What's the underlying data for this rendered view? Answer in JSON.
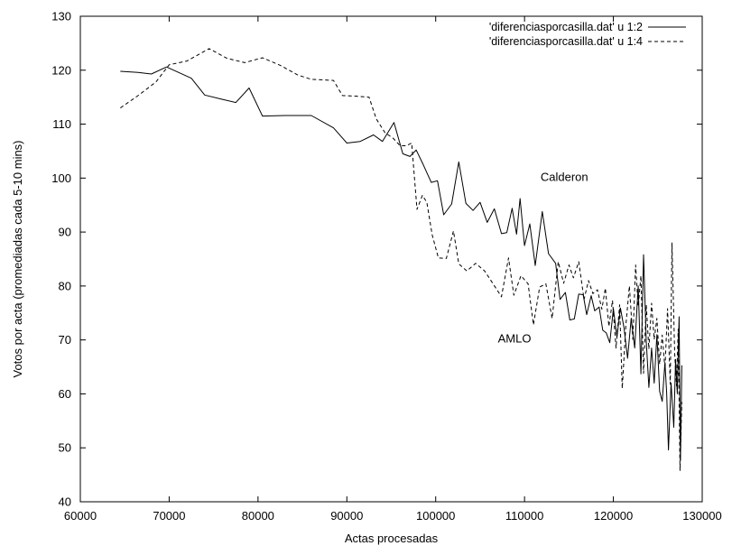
{
  "chart_data": {
    "type": "line",
    "xlabel": "Actas procesadas",
    "ylabel": "Votos por acta (promediadas cada 5-10 mins)",
    "xlim": [
      60000,
      130000
    ],
    "ylim": [
      40,
      130
    ],
    "xticks": [
      60000,
      70000,
      80000,
      90000,
      100000,
      110000,
      120000,
      130000
    ],
    "xtick_labels": [
      "60000",
      "70000",
      "80000",
      "90000",
      "100000",
      "110000",
      "120000",
      "130000"
    ],
    "yticks": [
      40,
      50,
      60,
      70,
      80,
      90,
      100,
      110,
      120,
      130
    ],
    "ytick_labels": [
      "40",
      "50",
      "60",
      "70",
      "80",
      "90",
      "100",
      "110",
      "120",
      "130"
    ],
    "grid": false,
    "legend_position": "top-right",
    "annotations": [
      {
        "text": "Calderon",
        "x": 111800,
        "y": 99.5
      },
      {
        "text": "AMLO",
        "x": 107000,
        "y": 69.5
      }
    ],
    "series": [
      {
        "name": "'diferenciasporcasilla.dat' u 1:2",
        "style": "solid",
        "color": "#000000",
        "points": [
          [
            64500,
            119.8
          ],
          [
            66500,
            119.6
          ],
          [
            68000,
            119.3
          ],
          [
            69700,
            120.6
          ],
          [
            72500,
            118.5
          ],
          [
            74000,
            115.4
          ],
          [
            76000,
            114.6
          ],
          [
            77500,
            114.0
          ],
          [
            79000,
            116.7
          ],
          [
            80500,
            111.5
          ],
          [
            83000,
            111.6
          ],
          [
            86000,
            111.6
          ],
          [
            88500,
            109.3
          ],
          [
            90000,
            106.5
          ],
          [
            91500,
            106.8
          ],
          [
            93000,
            108.0
          ],
          [
            94000,
            106.8
          ],
          [
            95300,
            110.3
          ],
          [
            96300,
            104.5
          ],
          [
            97100,
            104.0
          ],
          [
            97800,
            105.2
          ],
          [
            98600,
            102.5
          ],
          [
            99500,
            99.2
          ],
          [
            100200,
            99.5
          ],
          [
            100900,
            93.2
          ],
          [
            101800,
            95.2
          ],
          [
            102600,
            103.0
          ],
          [
            103400,
            95.3
          ],
          [
            104200,
            94.0
          ],
          [
            105000,
            95.5
          ],
          [
            105800,
            91.8
          ],
          [
            106600,
            94.3
          ],
          [
            107400,
            89.7
          ],
          [
            108000,
            89.9
          ],
          [
            108600,
            94.4
          ],
          [
            109100,
            89.6
          ],
          [
            109500,
            96.2
          ],
          [
            110000,
            87.5
          ],
          [
            110600,
            91.5
          ],
          [
            111200,
            83.8
          ],
          [
            112000,
            93.8
          ],
          [
            112700,
            86.0
          ],
          [
            113500,
            84.2
          ],
          [
            114000,
            77.5
          ],
          [
            114600,
            78.8
          ],
          [
            115100,
            73.7
          ],
          [
            115600,
            73.9
          ],
          [
            116100,
            78.5
          ],
          [
            116600,
            78.4
          ],
          [
            117000,
            74.7
          ],
          [
            117500,
            78.2
          ],
          [
            117900,
            75.4
          ],
          [
            118400,
            76.1
          ],
          [
            118800,
            71.8
          ],
          [
            119200,
            71.3
          ],
          [
            119600,
            69.5
          ],
          [
            120000,
            75.8
          ],
          [
            120400,
            70.5
          ],
          [
            120800,
            75.9
          ],
          [
            121200,
            72.2
          ],
          [
            121600,
            66.6
          ],
          [
            122000,
            74.0
          ],
          [
            122400,
            68.5
          ],
          [
            122800,
            80.0
          ],
          [
            123100,
            63.7
          ],
          [
            123400,
            85.8
          ],
          [
            123700,
            69.8
          ],
          [
            124000,
            61.2
          ],
          [
            124300,
            68.5
          ],
          [
            124600,
            62.0
          ],
          [
            124900,
            71.0
          ],
          [
            125200,
            60.5
          ],
          [
            125500,
            58.6
          ],
          [
            125800,
            65.8
          ],
          [
            126000,
            60.2
          ],
          [
            126200,
            49.6
          ],
          [
            126500,
            62.0
          ],
          [
            126800,
            53.8
          ],
          [
            127000,
            66.4
          ],
          [
            127200,
            60.0
          ],
          [
            127400,
            74.3
          ],
          [
            127550,
            47.7
          ],
          [
            127700,
            65.3
          ]
        ]
      },
      {
        "name": "'diferenciasporcasilla.dat' u 1:4",
        "style": "dashed",
        "color": "#000000",
        "points": [
          [
            64500,
            113.0
          ],
          [
            66500,
            115.3
          ],
          [
            68500,
            117.8
          ],
          [
            70000,
            121.0
          ],
          [
            72000,
            121.7
          ],
          [
            74500,
            124.0
          ],
          [
            76500,
            122.2
          ],
          [
            78500,
            121.4
          ],
          [
            80500,
            122.3
          ],
          [
            82500,
            120.9
          ],
          [
            84500,
            119.1
          ],
          [
            86000,
            118.3
          ],
          [
            88500,
            118.1
          ],
          [
            89500,
            115.3
          ],
          [
            91000,
            115.2
          ],
          [
            92500,
            115.0
          ],
          [
            93300,
            111.0
          ],
          [
            94300,
            108.4
          ],
          [
            95200,
            107.4
          ],
          [
            96000,
            106.0
          ],
          [
            96700,
            106.0
          ],
          [
            97300,
            106.5
          ],
          [
            97900,
            94.2
          ],
          [
            98500,
            96.8
          ],
          [
            99000,
            95.5
          ],
          [
            99600,
            89.5
          ],
          [
            100300,
            85.2
          ],
          [
            101200,
            85.1
          ],
          [
            102000,
            90.2
          ],
          [
            102600,
            84.1
          ],
          [
            103500,
            82.8
          ],
          [
            104500,
            84.2
          ],
          [
            105500,
            82.8
          ],
          [
            106500,
            80.3
          ],
          [
            107400,
            78.0
          ],
          [
            108200,
            85.2
          ],
          [
            108800,
            78.3
          ],
          [
            109600,
            81.9
          ],
          [
            110400,
            80.4
          ],
          [
            111000,
            72.8
          ],
          [
            111700,
            79.8
          ],
          [
            112400,
            80.4
          ],
          [
            113100,
            74.0
          ],
          [
            113800,
            84.5
          ],
          [
            114400,
            80.5
          ],
          [
            115000,
            83.9
          ],
          [
            115500,
            81.5
          ],
          [
            116100,
            84.5
          ],
          [
            116700,
            77.5
          ],
          [
            117200,
            81.0
          ],
          [
            117700,
            78.6
          ],
          [
            118200,
            79.3
          ],
          [
            118700,
            75.7
          ],
          [
            119100,
            79.6
          ],
          [
            119500,
            72.5
          ],
          [
            119900,
            77.3
          ],
          [
            120300,
            68.5
          ],
          [
            120700,
            76.5
          ],
          [
            121000,
            61.0
          ],
          [
            121400,
            72.7
          ],
          [
            121800,
            80.0
          ],
          [
            122200,
            70.1
          ],
          [
            122500,
            83.9
          ],
          [
            122800,
            76.2
          ],
          [
            123100,
            81.9
          ],
          [
            123400,
            63.8
          ],
          [
            123700,
            76.5
          ],
          [
            124000,
            68.3
          ],
          [
            124300,
            76.8
          ],
          [
            124600,
            70.1
          ],
          [
            124900,
            74.0
          ],
          [
            125200,
            65.5
          ],
          [
            125500,
            70.9
          ],
          [
            125800,
            64.6
          ],
          [
            126100,
            75.8
          ],
          [
            126400,
            61.8
          ],
          [
            126600,
            88.0
          ],
          [
            126900,
            67.5
          ],
          [
            127100,
            61.5
          ],
          [
            127300,
            72.0
          ],
          [
            127500,
            45.8
          ],
          [
            127700,
            58.5
          ]
        ]
      }
    ]
  }
}
